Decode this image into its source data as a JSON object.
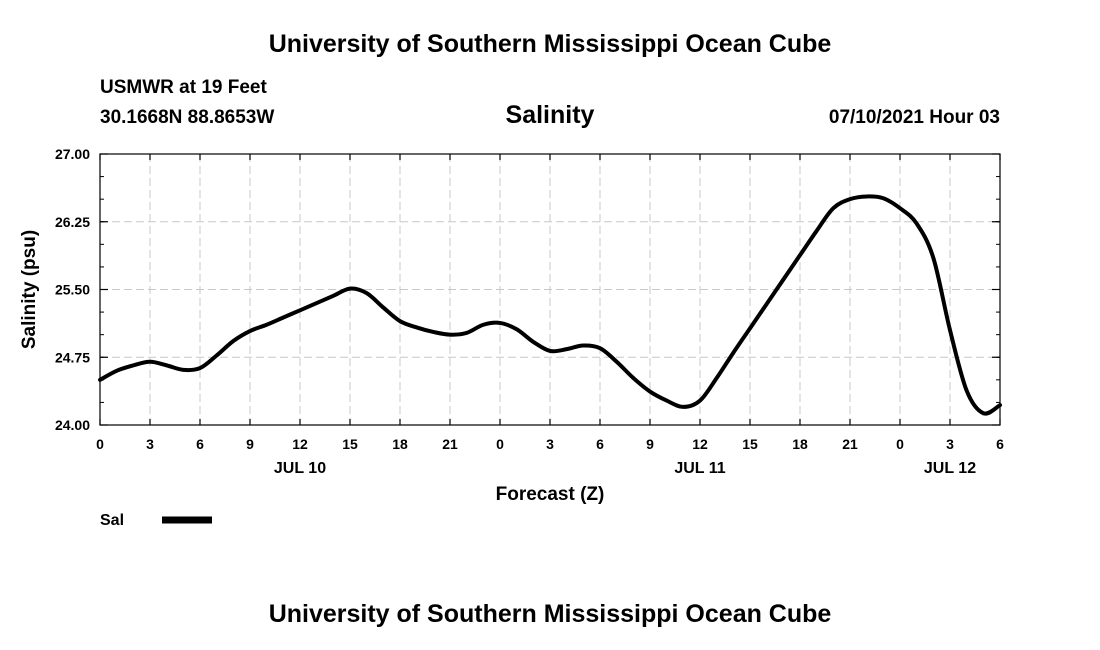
{
  "header": {
    "title": "University of Southern Mississippi Ocean Cube",
    "station": "USMWR at 19 Feet",
    "coordinates": "30.1668N  88.8653W",
    "parameter": "Salinity",
    "datetime": "07/10/2021 Hour 03"
  },
  "footer": {
    "title": "University of Southern Mississippi Ocean Cube"
  },
  "chart_data": {
    "type": "line",
    "title": "Salinity",
    "xlabel": "Forecast (Z)",
    "ylabel": "Salinity (psu)",
    "xlim": [
      0,
      54
    ],
    "ylim": [
      24.0,
      27.0
    ],
    "grid": true,
    "x_ticks": [
      0,
      3,
      6,
      9,
      12,
      15,
      18,
      21,
      24,
      27,
      30,
      33,
      36,
      39,
      42,
      45,
      48,
      51,
      54
    ],
    "x_tick_labels": [
      "0",
      "3",
      "6",
      "9",
      "12",
      "15",
      "18",
      "21",
      "0",
      "3",
      "6",
      "9",
      "12",
      "15",
      "18",
      "21",
      "0",
      "3",
      "6"
    ],
    "day_labels": [
      {
        "x": 12,
        "label": "JUL 10"
      },
      {
        "x": 36,
        "label": "JUL 11"
      },
      {
        "x": 51,
        "label": "JUL 12"
      }
    ],
    "y_ticks": [
      24.0,
      24.75,
      25.5,
      26.25,
      27.0
    ],
    "y_tick_labels": [
      "24.00",
      "24.75",
      "25.50",
      "26.25",
      "27.00"
    ],
    "y_minor_step": 0.25,
    "legend": {
      "label": "Sal",
      "placement": "bottom-left"
    },
    "series": [
      {
        "name": "Sal",
        "x": [
          0,
          1,
          2,
          3,
          4,
          5,
          6,
          7,
          8,
          9,
          10,
          11,
          12,
          13,
          14,
          15,
          16,
          17,
          18,
          19,
          20,
          21,
          22,
          23,
          24,
          25,
          26,
          27,
          28,
          29,
          30,
          31,
          32,
          33,
          34,
          35,
          36,
          37,
          38,
          39,
          40,
          41,
          42,
          43,
          44,
          45,
          46,
          47,
          48,
          49,
          50,
          51,
          52,
          53,
          54
        ],
        "values": [
          24.5,
          24.6,
          24.66,
          24.7,
          24.66,
          24.61,
          24.63,
          24.77,
          24.93,
          25.04,
          25.11,
          25.19,
          25.27,
          25.35,
          25.43,
          25.51,
          25.46,
          25.3,
          25.15,
          25.08,
          25.03,
          25.0,
          25.02,
          25.11,
          25.13,
          25.06,
          24.92,
          24.82,
          24.84,
          24.88,
          24.85,
          24.7,
          24.52,
          24.37,
          24.27,
          24.2,
          24.27,
          24.52,
          24.8,
          25.07,
          25.34,
          25.61,
          25.88,
          26.15,
          26.4,
          26.5,
          26.53,
          26.51,
          26.4,
          26.23,
          25.85,
          25.05,
          24.38,
          24.13,
          24.22
        ]
      }
    ]
  }
}
